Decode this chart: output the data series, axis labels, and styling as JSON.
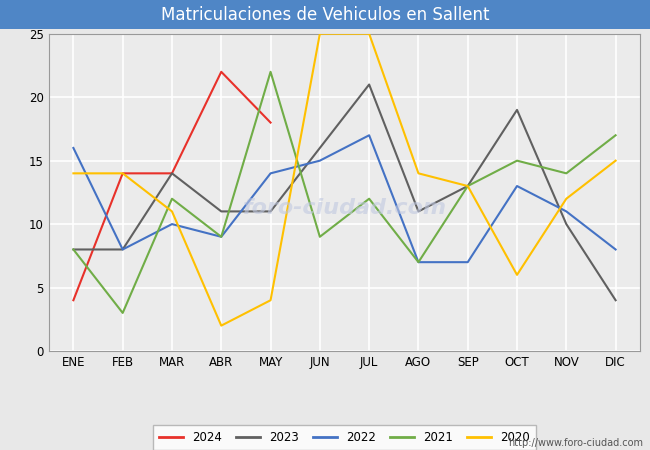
{
  "title": "Matriculaciones de Vehiculos en Sallent",
  "months": [
    "ENE",
    "FEB",
    "MAR",
    "ABR",
    "MAY",
    "JUN",
    "JUL",
    "AGO",
    "SEP",
    "OCT",
    "NOV",
    "DIC"
  ],
  "series": {
    "2024": [
      4,
      14,
      14,
      22,
      18,
      null,
      null,
      null,
      null,
      null,
      null,
      null
    ],
    "2023": [
      8,
      8,
      14,
      11,
      11,
      16,
      21,
      11,
      13,
      19,
      10,
      4
    ],
    "2022": [
      16,
      8,
      10,
      9,
      14,
      15,
      17,
      7,
      7,
      13,
      11,
      8
    ],
    "2021": [
      8,
      3,
      12,
      9,
      22,
      9,
      12,
      7,
      13,
      15,
      14,
      17
    ],
    "2020": [
      14,
      14,
      11,
      2,
      4,
      25,
      25,
      14,
      13,
      6,
      12,
      15
    ]
  },
  "colors": {
    "2024": "#e8312a",
    "2023": "#606060",
    "2022": "#4472c4",
    "2021": "#70ad47",
    "2020": "#ffc000"
  },
  "ylim": [
    0,
    25
  ],
  "yticks": [
    0,
    5,
    10,
    15,
    20,
    25
  ],
  "fig_bg": "#e8e8e8",
  "plot_bg": "#ebebeb",
  "title_bg": "#4f86c6",
  "title_color": "#ffffff",
  "grid_color": "#ffffff",
  "url": "http://www.foro-ciudad.com",
  "legend_order": [
    "2024",
    "2023",
    "2022",
    "2021",
    "2020"
  ],
  "title_fontsize": 12,
  "tick_fontsize": 8.5,
  "legend_fontsize": 8.5,
  "url_fontsize": 7
}
